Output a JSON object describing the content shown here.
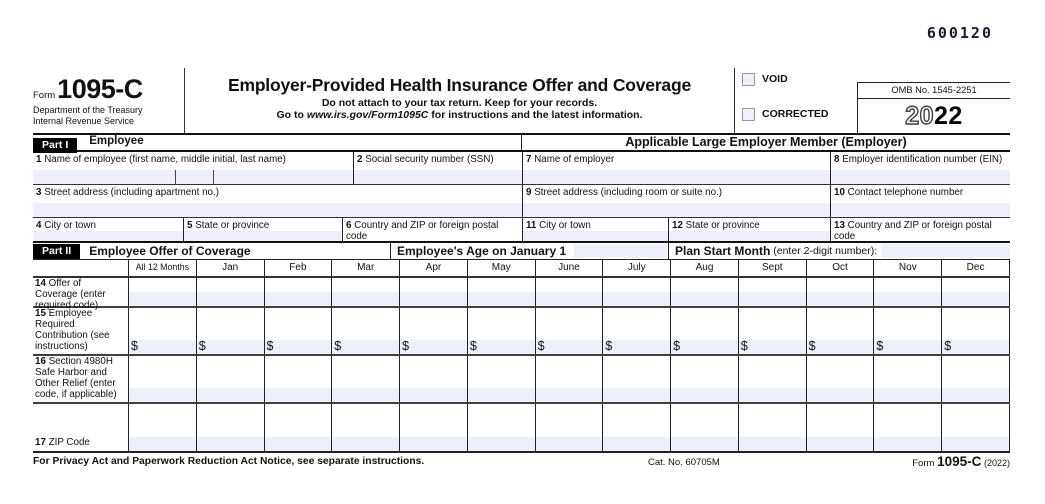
{
  "serial": "600120",
  "header": {
    "form_label": "Form",
    "form_number": "1095-C",
    "dept_line1": "Department of the Treasury",
    "dept_line2": "Internal Revenue Service",
    "title": "Employer-Provided Health Insurance Offer and Coverage",
    "subtitle1": "Do not attach to your tax return. Keep for your records.",
    "subtitle2_pre": "Go to ",
    "subtitle2_url": "www.irs.gov/Form1095C",
    "subtitle2_post": " for instructions and the latest information.",
    "void_label": "VOID",
    "corrected_label": "CORRECTED",
    "omb": "OMB No. 1545-2251",
    "year_outline": "20",
    "year_solid": "22"
  },
  "part1": {
    "badge": "Part I",
    "left_title": "Employee",
    "right_title": "Applicable Large Employer Member (Employer)",
    "fields": {
      "f1": {
        "num": "1",
        "label": "Name of employee (first name, middle initial, last name)"
      },
      "f2": {
        "num": "2",
        "label": "Social security number (SSN)"
      },
      "f3": {
        "num": "3",
        "label": "Street address (including apartment no.)"
      },
      "f4": {
        "num": "4",
        "label": "City or town"
      },
      "f5": {
        "num": "5",
        "label": "State or province"
      },
      "f6": {
        "num": "6",
        "label": "Country and ZIP or foreign postal code"
      },
      "f7": {
        "num": "7",
        "label": "Name of employer"
      },
      "f8": {
        "num": "8",
        "label": "Employer identification number (EIN)"
      },
      "f9": {
        "num": "9",
        "label": "Street address (including room or suite no.)"
      },
      "f10": {
        "num": "10",
        "label": "Contact telephone number"
      },
      "f11": {
        "num": "11",
        "label": "City or town"
      },
      "f12": {
        "num": "12",
        "label": "State or province"
      },
      "f13": {
        "num": "13",
        "label": "Country and ZIP or foreign postal code"
      }
    }
  },
  "part2": {
    "badge": "Part II",
    "title": "Employee Offer of Coverage",
    "age_label": "Employee's Age on January 1",
    "plan_bold": "Plan Start Month",
    "plan_rest": " (enter 2-digit number):",
    "months": [
      "All 12 Months",
      "Jan",
      "Feb",
      "Mar",
      "Apr",
      "May",
      "June",
      "July",
      "Aug",
      "Sept",
      "Oct",
      "Nov",
      "Dec"
    ],
    "dollar": "$",
    "rows": [
      {
        "num": "14",
        "label": "Offer of Coverage (enter required code)"
      },
      {
        "num": "15",
        "label": "Employee Required Contribution (see instructions)"
      },
      {
        "num": "16",
        "label": "Section 4980H Safe Harbor and Other Relief (enter code, if applicable)"
      },
      {
        "num": "17",
        "label": "ZIP Code"
      }
    ]
  },
  "footer": {
    "privacy": "For Privacy Act and Paperwork Reduction Act Notice, see separate instructions.",
    "cat_no": "Cat. No. 60705M",
    "form_label": "Form",
    "form_number": "1095-C",
    "form_year": "(2022)"
  }
}
